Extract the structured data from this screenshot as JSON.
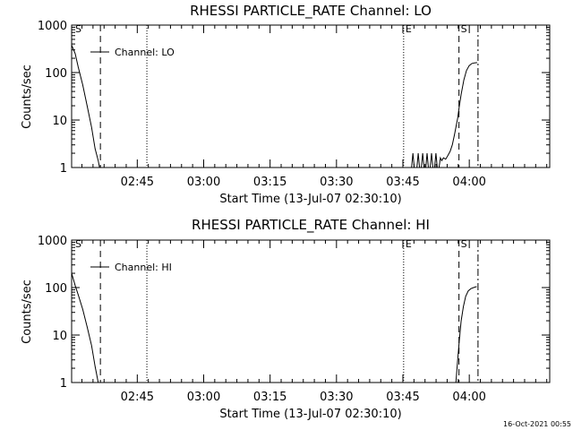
{
  "footer": {
    "timestamp": "16-Oct-2021 00:55"
  },
  "chart_data": [
    {
      "type": "line",
      "title": "RHESSI PARTICLE_RATE Channel: LO",
      "xlabel": "Start Time (13-Jul-07 02:30:10)",
      "ylabel": "Counts/sec",
      "x_units": "minutes since 02:30:10",
      "xlim": [
        0,
        108
      ],
      "ylim": [
        1,
        1000
      ],
      "yscale": "log",
      "grid": false,
      "legend_position": "top-left",
      "x_ticks": [
        {
          "value": 14.83,
          "label": "02:45"
        },
        {
          "value": 29.83,
          "label": "03:00"
        },
        {
          "value": 44.83,
          "label": "03:15"
        },
        {
          "value": 59.83,
          "label": "03:30"
        },
        {
          "value": 74.83,
          "label": "03:45"
        },
        {
          "value": 89.83,
          "label": "04:00"
        }
      ],
      "y_ticks": [
        {
          "value": 1,
          "label": "1"
        },
        {
          "value": 10,
          "label": "10"
        },
        {
          "value": 100,
          "label": "100"
        },
        {
          "value": 1000,
          "label": "1000"
        }
      ],
      "markers": [
        {
          "x": 0.4,
          "style": "none",
          "label": "S"
        },
        {
          "x": 6.5,
          "style": "dashed",
          "label": ""
        },
        {
          "x": 17.0,
          "style": "dotted",
          "label": ""
        },
        {
          "x": 75.0,
          "style": "dotted",
          "label": "E"
        },
        {
          "x": 87.5,
          "style": "dashed",
          "label": "S"
        },
        {
          "x": 91.8,
          "style": "dashdot",
          "label": ""
        }
      ],
      "series": [
        {
          "name": "Channel: LO",
          "x": [
            0,
            0.8,
            1.5,
            2.5,
            3.5,
            4.5,
            5.3,
            6.0,
            6.3,
            76.8,
            77.1,
            77.4,
            78.0,
            78.3,
            78.6,
            79.0,
            79.3,
            79.6,
            80.0,
            80.3,
            80.6,
            81.0,
            81.3,
            81.6,
            82.0,
            82.3,
            82.6,
            83.0,
            83.3,
            83.6,
            84.0,
            84.5,
            85.0,
            85.5,
            86.0,
            86.5,
            87.2,
            87.6,
            88.0,
            88.6,
            89.2,
            89.8,
            90.4,
            91.0,
            91.6
          ],
          "y": [
            380,
            250,
            130,
            55,
            20,
            7,
            2.5,
            1.4,
            1,
            1,
            2,
            1,
            1,
            2,
            1,
            1,
            2,
            1,
            1,
            2,
            1,
            1,
            2,
            1,
            1,
            2,
            1,
            1,
            1.6,
            1.4,
            1.6,
            1.5,
            1.8,
            2.2,
            3,
            5,
            11,
            20,
            35,
            70,
            110,
            140,
            155,
            160,
            162
          ]
        }
      ]
    },
    {
      "type": "line",
      "title": "RHESSI PARTICLE_RATE Channel: HI",
      "xlabel": "Start Time (13-Jul-07 02:30:10)",
      "ylabel": "Counts/sec",
      "x_units": "minutes since 02:30:10",
      "xlim": [
        0,
        108
      ],
      "ylim": [
        1,
        1000
      ],
      "yscale": "log",
      "grid": false,
      "legend_position": "top-left",
      "x_ticks": [
        {
          "value": 14.83,
          "label": "02:45"
        },
        {
          "value": 29.83,
          "label": "03:00"
        },
        {
          "value": 44.83,
          "label": "03:15"
        },
        {
          "value": 59.83,
          "label": "03:30"
        },
        {
          "value": 74.83,
          "label": "03:45"
        },
        {
          "value": 89.83,
          "label": "04:00"
        }
      ],
      "y_ticks": [
        {
          "value": 1,
          "label": "1"
        },
        {
          "value": 10,
          "label": "10"
        },
        {
          "value": 100,
          "label": "100"
        },
        {
          "value": 1000,
          "label": "1000"
        }
      ],
      "markers": [
        {
          "x": 0.4,
          "style": "none",
          "label": "S"
        },
        {
          "x": 6.5,
          "style": "dashed",
          "label": ""
        },
        {
          "x": 17.0,
          "style": "dotted",
          "label": ""
        },
        {
          "x": 75.0,
          "style": "dotted",
          "label": "E"
        },
        {
          "x": 87.5,
          "style": "dashed",
          "label": "S"
        },
        {
          "x": 91.8,
          "style": "dashdot",
          "label": ""
        }
      ],
      "series": [
        {
          "name": "Channel: HI",
          "x": [
            0,
            0.8,
            1.5,
            2.5,
            3.5,
            4.5,
            5.3,
            6.0,
            86.8,
            87.2,
            87.6,
            88.0,
            88.5,
            89.0,
            89.6,
            90.2,
            90.8,
            91.5
          ],
          "y": [
            200,
            110,
            70,
            35,
            15,
            6,
            2.2,
            1,
            1,
            3,
            8,
            20,
            40,
            65,
            85,
            95,
            100,
            105
          ]
        }
      ]
    }
  ]
}
